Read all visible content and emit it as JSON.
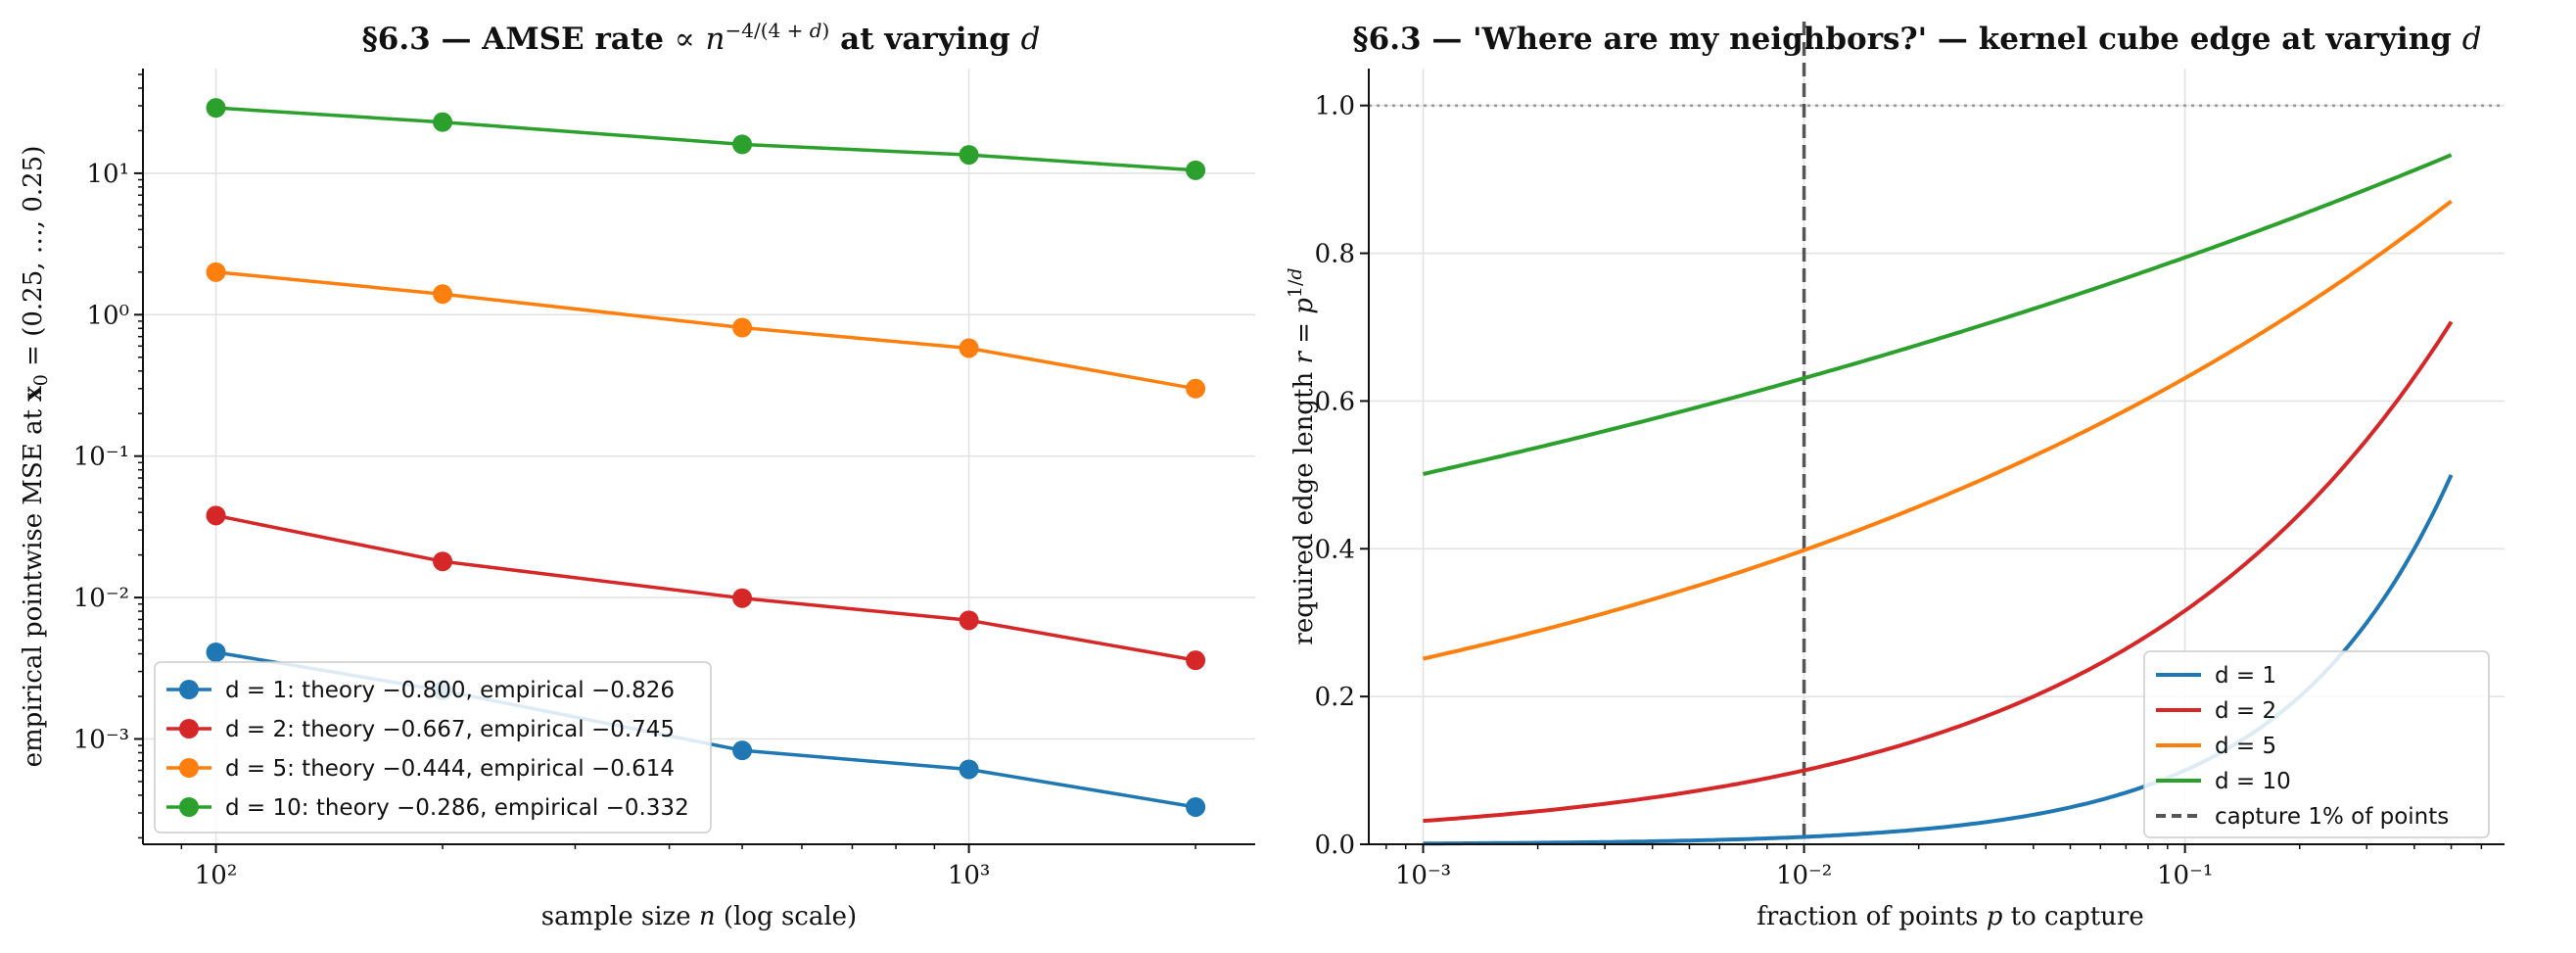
{
  "colors": {
    "d1": "#1f77b4",
    "d2": "#d62728",
    "d5": "#ff7f0e",
    "d10": "#2ca02c",
    "reference": "#555555",
    "grid": "#e3e3e3"
  },
  "chart_data": [
    {
      "type": "line",
      "title": "§6.3 — AMSE rate  ∝ n^(−4/(4+d)) at varying d",
      "xlabel": "sample size n (log scale)",
      "ylabel": "empirical pointwise MSE at x₀ = (0.25, …, 0.25)",
      "xscale": "log",
      "yscale": "log",
      "xlim": [
        80,
        2400
      ],
      "ylim": [
        0.00018,
        55
      ],
      "x_tick_labels": [
        "10²",
        "10³"
      ],
      "y_tick_labels": [
        "10⁻³",
        "10⁻²",
        "10⁻¹",
        "10⁰",
        "10¹"
      ],
      "grid": true,
      "legend_position": "lower-left",
      "x": [
        100,
        200,
        500,
        1000,
        2000
      ],
      "series": [
        {
          "name": "d = 1: theory −0.800, empirical −0.826",
          "color_key": "d1",
          "values": [
            0.0041,
            0.0022,
            0.00083,
            0.00061,
            0.00033
          ]
        },
        {
          "name": "d = 2: theory −0.667, empirical −0.745",
          "color_key": "d2",
          "values": [
            0.038,
            0.018,
            0.0099,
            0.0069,
            0.0036
          ]
        },
        {
          "name": "d = 5: theory −0.444, empirical −0.614",
          "color_key": "d5",
          "values": [
            2.0,
            1.4,
            0.81,
            0.58,
            0.3
          ]
        },
        {
          "name": "d = 10: theory −0.286, empirical −0.332",
          "color_key": "d10",
          "values": [
            29,
            23,
            16,
            13.5,
            10.5
          ]
        }
      ]
    },
    {
      "type": "line",
      "title": "§6.3 — 'Where are my neighbors?' — kernel cube edge at varying d",
      "xlabel": "fraction of points p to capture",
      "ylabel": "required edge length r = p^(1/d)",
      "xscale": "log",
      "yscale": "linear",
      "xlim": [
        0.00072,
        0.69
      ],
      "ylim": [
        0,
        1.05
      ],
      "x_tick_labels": [
        "10⁻³",
        "10⁻²",
        "10⁻¹"
      ],
      "y_tick_labels": [
        "0.0",
        "0.2",
        "0.4",
        "0.6",
        "0.8",
        "1.0"
      ],
      "grid": true,
      "legend_position": "lower-right",
      "p_range": [
        0.001,
        0.5
      ],
      "series": [
        {
          "name": "d = 1",
          "color_key": "d1",
          "d": 1
        },
        {
          "name": "d = 2",
          "color_key": "d2",
          "d": 2
        },
        {
          "name": "d = 5",
          "color_key": "d5",
          "d": 5
        },
        {
          "name": "d = 10",
          "color_key": "d10",
          "d": 10
        }
      ],
      "reference_lines": [
        {
          "type": "vertical",
          "x": 0.01,
          "style": "dashed",
          "name": "capture 1% of points"
        },
        {
          "type": "horizontal",
          "y": 1.0,
          "style": "dotted"
        }
      ]
    }
  ]
}
